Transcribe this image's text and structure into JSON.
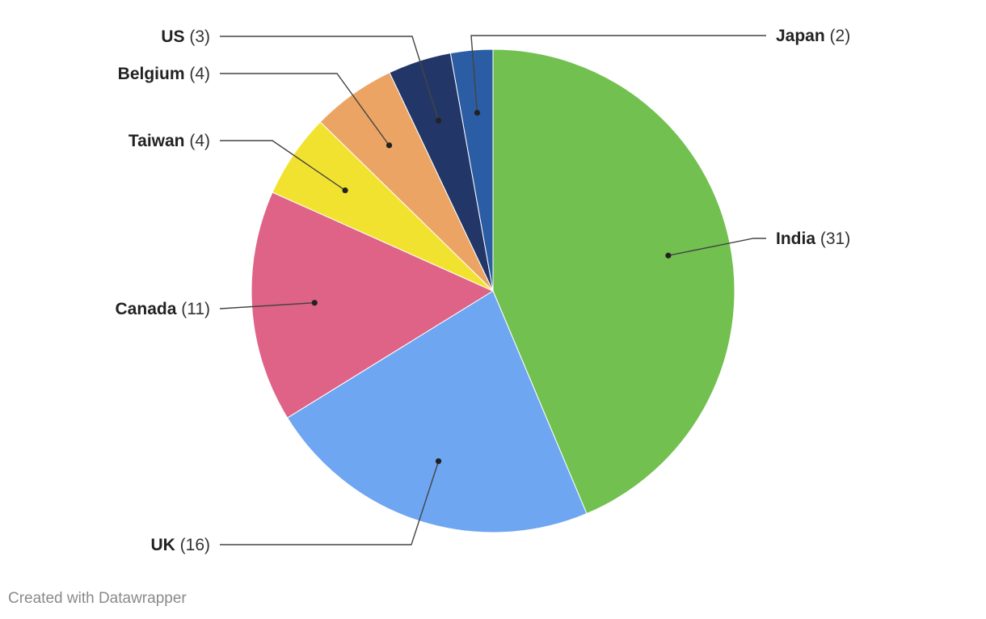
{
  "chart_data": {
    "type": "pie",
    "slices": [
      {
        "label": "India",
        "value": 31,
        "color": "#72c050"
      },
      {
        "label": "UK",
        "value": 16,
        "color": "#6ea6f2"
      },
      {
        "label": "Canada",
        "value": 11,
        "color": "#de6387"
      },
      {
        "label": "Taiwan",
        "value": 4,
        "color": "#f2e230"
      },
      {
        "label": "Belgium",
        "value": 4,
        "color": "#eba464"
      },
      {
        "label": "US",
        "value": 3,
        "color": "#233668"
      },
      {
        "label": "Japan",
        "value": 2,
        "color": "#2b5da4"
      }
    ],
    "start_angle": "12 o'clock",
    "direction": "clockwise"
  },
  "footer": {
    "credit": "Created with Datawrapper"
  }
}
